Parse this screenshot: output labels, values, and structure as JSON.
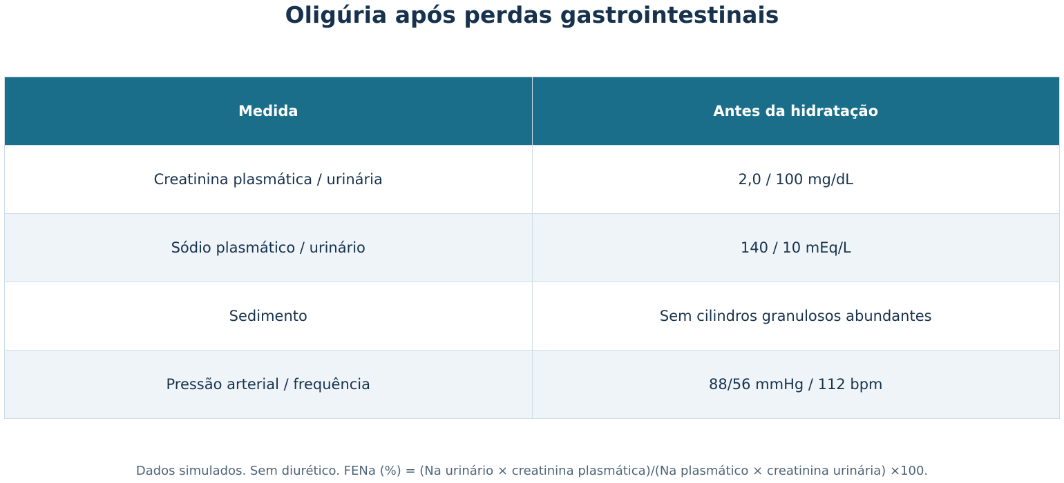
{
  "title": "Oligúria após perdas gastrointestinais",
  "table": {
    "header": [
      "Medida",
      "Antes da hidratação"
    ],
    "rows": [
      [
        "Creatinina plasmática / urinária",
        "2,0 / 100 mg/dL"
      ],
      [
        "Sódio plasmático / urinário",
        "140 / 10 mEq/L"
      ],
      [
        "Sedimento",
        "Sem cilindros granulosos abundantes"
      ],
      [
        "Pressão arterial / frequência",
        "88/56 mmHg / 112 bpm"
      ]
    ]
  },
  "footnote": "Dados simulados. Sem diurético. FENa (%) = (Na urinário × creatinina plasmática)/(Na plasmático × creatinina urinária) ×100."
}
